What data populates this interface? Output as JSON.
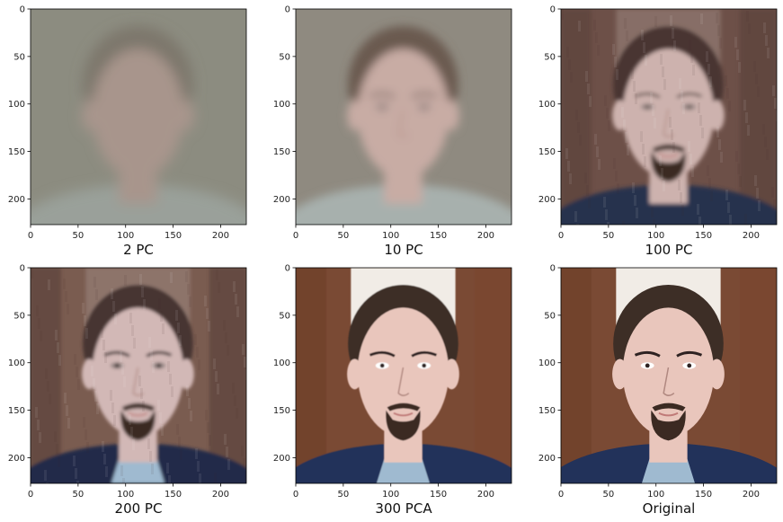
{
  "chart_data": [
    {
      "type": "image",
      "title": "2 PC",
      "xlim": [
        0,
        227
      ],
      "ylim": [
        227,
        0
      ],
      "xticks": [
        0,
        50,
        100,
        150,
        200
      ],
      "yticks": [
        0,
        50,
        100,
        150,
        200
      ],
      "depiction": "very blurry grey face reconstruction",
      "colors": {
        "bg": "#8c8c80",
        "face": "#a8958c",
        "hair": "#7d776c",
        "shirt": "#9aa09a"
      },
      "blur": 7,
      "detail": 0
    },
    {
      "type": "image",
      "title": "10 PC",
      "xlim": [
        0,
        227
      ],
      "ylim": [
        227,
        0
      ],
      "xticks": [
        0,
        50,
        100,
        150,
        200
      ],
      "yticks": [
        0,
        50,
        100,
        150,
        200
      ],
      "depiction": "blurry face reconstruction",
      "colors": {
        "bg": "#8f8a80",
        "face": "#c8aca4",
        "hair": "#6a5a50",
        "shirt": "#a7b0ad"
      },
      "blur": 5,
      "detail": 1
    },
    {
      "type": "image",
      "title": "100 PC",
      "xlim": [
        0,
        227
      ],
      "ylim": [
        227,
        0
      ],
      "xticks": [
        0,
        50,
        100,
        150,
        200
      ],
      "yticks": [
        0,
        50,
        100,
        150,
        200
      ],
      "depiction": "noisy face reconstruction with visible beard",
      "colors": {
        "bg": "#6d5048",
        "face": "#cdb2ae",
        "hair": "#4a3532",
        "shirt": "#26304e"
      },
      "blur": 2.5,
      "detail": 2
    },
    {
      "type": "image",
      "title": "200 PC",
      "xlim": [
        0,
        227
      ],
      "ylim": [
        227,
        0
      ],
      "xticks": [
        0,
        50,
        100,
        150,
        200
      ],
      "yticks": [
        0,
        50,
        100,
        150,
        200
      ],
      "depiction": "noisy face reconstruction closer to original",
      "colors": {
        "bg": "#7a5c50",
        "face": "#d2b8b6",
        "hair": "#463433",
        "shirt": "#22294a"
      },
      "blur": 1.8,
      "detail": 3
    },
    {
      "type": "image",
      "title": "300 PCA",
      "xlim": [
        0,
        227
      ],
      "ylim": [
        227,
        0
      ],
      "xticks": [
        0,
        50,
        100,
        150,
        200
      ],
      "yticks": [
        0,
        50,
        100,
        150,
        200
      ],
      "depiction": "near-perfect face reconstruction",
      "colors": {
        "bg": "#7a4a34",
        "face": "#e9c6bc",
        "hair": "#3c2d26",
        "shirt": "#22305a"
      },
      "blur": 0.4,
      "detail": 4
    },
    {
      "type": "image",
      "title": "Original",
      "xlim": [
        0,
        227
      ],
      "ylim": [
        227,
        0
      ],
      "xticks": [
        0,
        50,
        100,
        150,
        200
      ],
      "yticks": [
        0,
        50,
        100,
        150,
        200
      ],
      "depiction": "original face photo",
      "colors": {
        "bg": "#7a4a34",
        "face": "#e9c6bc",
        "hair": "#3c2d26",
        "shirt": "#22305a"
      },
      "blur": 0.3,
      "detail": 4
    }
  ]
}
